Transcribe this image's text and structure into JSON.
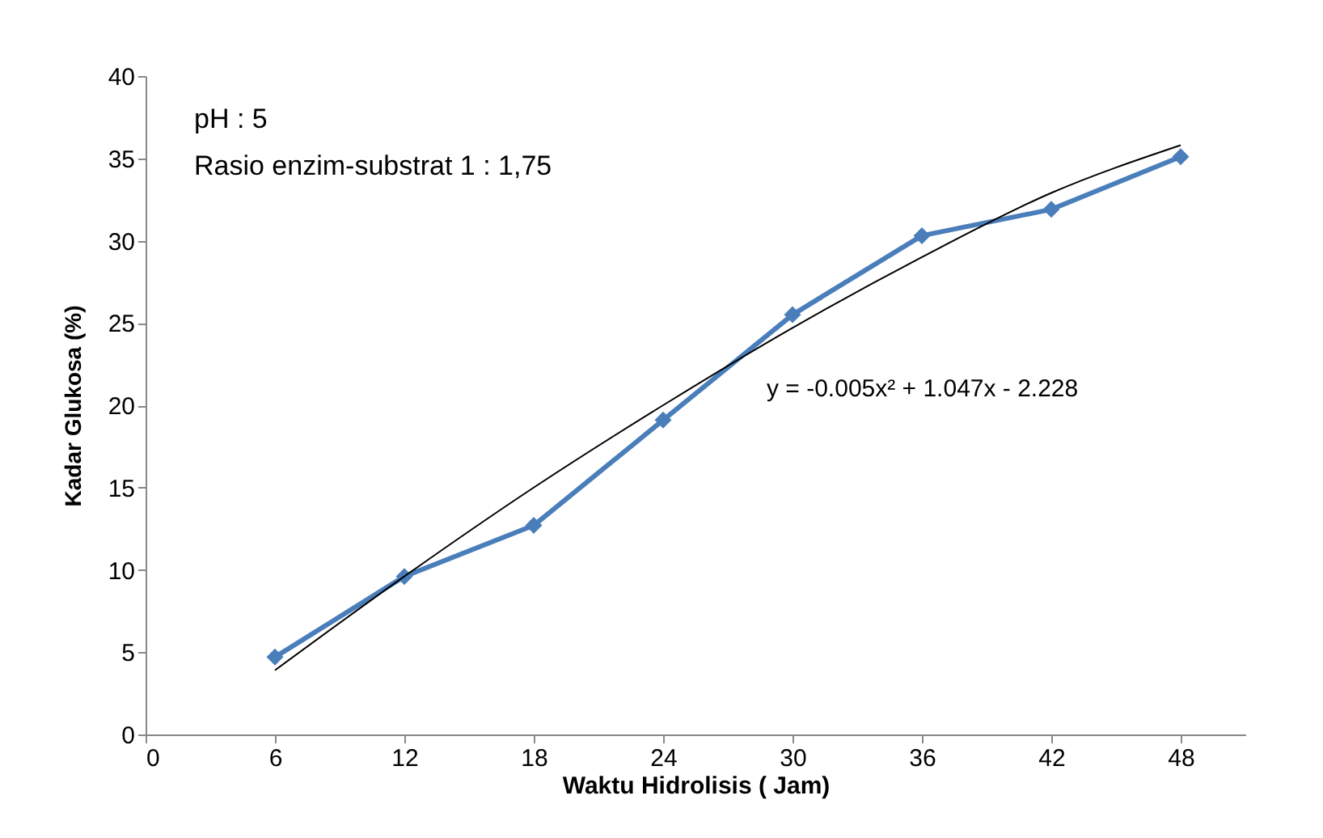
{
  "chart_data": {
    "type": "line",
    "xlabel": "Waktu  Hidrolisis ( Jam)",
    "ylabel": "Kadar Glukosa (%)",
    "x": [
      6,
      12,
      18,
      24,
      30,
      36,
      42,
      48
    ],
    "series": [
      {
        "color": "#4a7ebb",
        "marker": "diamond",
        "values": [
          4.7,
          9.6,
          12.7,
          19.1,
          25.5,
          30.3,
          31.9,
          35.1
        ]
      },
      {
        "color": "#000000",
        "marker": "none",
        "x": [
          6,
          12,
          18,
          24,
          30,
          36,
          42,
          48
        ],
        "values": [
          3.9,
          9.6,
          15.0,
          20.0,
          24.7,
          29.0,
          32.9,
          35.8
        ]
      }
    ],
    "xlim": [
      0,
      51
    ],
    "xticks": [
      0,
      6,
      12,
      18,
      24,
      30,
      36,
      42,
      48
    ],
    "ylim": [
      0,
      40
    ],
    "yticks": [
      0,
      5,
      10,
      15,
      20,
      25,
      30,
      35,
      40
    ],
    "grid": false,
    "annotations": [
      "pH : 5",
      "Rasio enzim-substrat 1 : 1,75",
      "y = -0.005x² + 1.047x - 2.228"
    ]
  }
}
